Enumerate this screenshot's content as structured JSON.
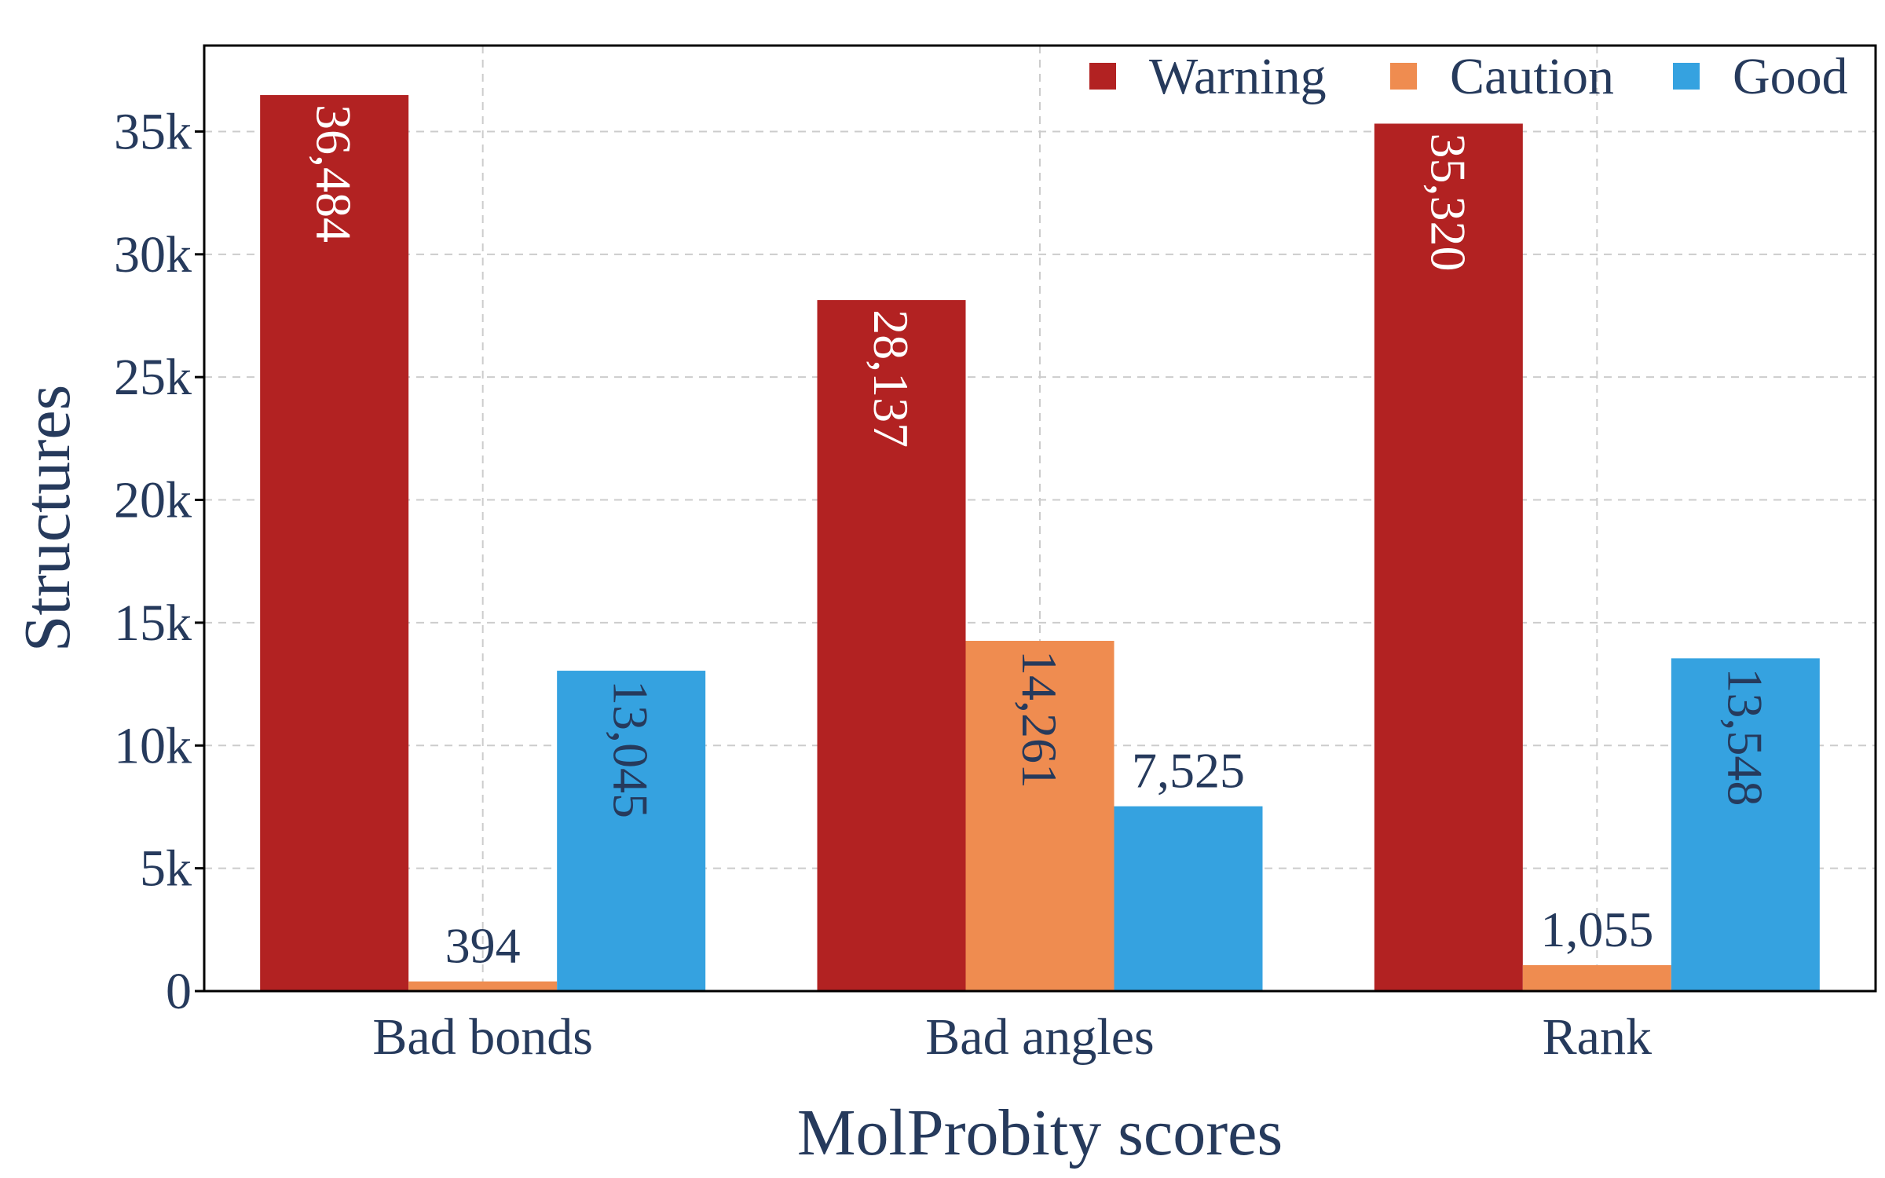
{
  "chart_data": {
    "type": "bar",
    "xlabel": "MolProbity scores",
    "ylabel": "Structures",
    "categories": [
      "Bad bonds",
      "Bad angles",
      "Rank"
    ],
    "ylim": [
      0,
      38500
    ],
    "yticks": [
      0,
      5000,
      10000,
      15000,
      20000,
      25000,
      30000,
      35000
    ],
    "ytick_labels": [
      "0",
      "5k",
      "10k",
      "15k",
      "20k",
      "25k",
      "30k",
      "35k"
    ],
    "grid": true,
    "legend_position": "top-right",
    "series": [
      {
        "name": "Warning",
        "color": "#b22222",
        "label_color": "#ffffff",
        "values": [
          36484,
          28137,
          35320
        ],
        "labels": [
          "36,484",
          "28,137",
          "35,320"
        ]
      },
      {
        "name": "Caution",
        "color": "#ef8c50",
        "label_color": "#263a5c",
        "values": [
          394,
          14261,
          1055
        ],
        "labels": [
          "394",
          "14,261",
          "1,055"
        ]
      },
      {
        "name": "Good",
        "color": "#35a2e0",
        "label_color": "#263a5c",
        "values": [
          13045,
          7525,
          13548
        ],
        "labels": [
          "13,045",
          "7,525",
          "13,548"
        ]
      }
    ]
  }
}
